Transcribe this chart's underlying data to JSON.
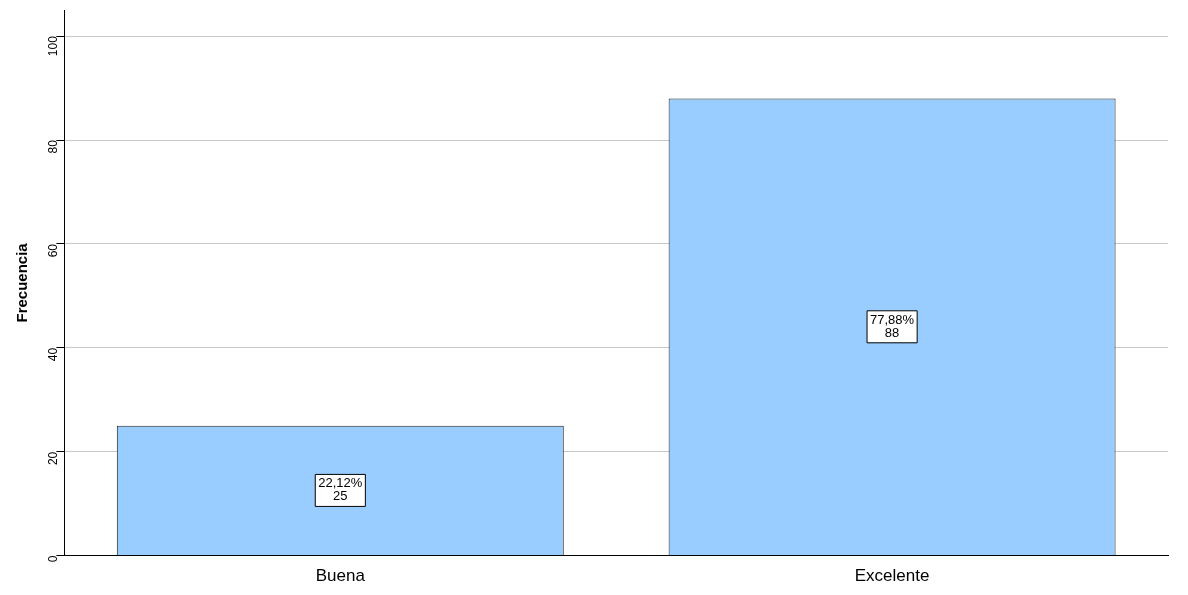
{
  "chart_data": {
    "type": "bar",
    "ylabel": "Frecuencia",
    "categories": [
      "Buena",
      "Excelente"
    ],
    "values": [
      25,
      88
    ],
    "color": "#99ccff",
    "value_labels": [
      "22,12%\n25",
      "77,88%\n88"
    ],
    "ylim": [
      0,
      105
    ],
    "yticks": [
      0,
      20,
      40,
      60,
      80,
      100
    ],
    "grid": "y",
    "legend": false
  }
}
